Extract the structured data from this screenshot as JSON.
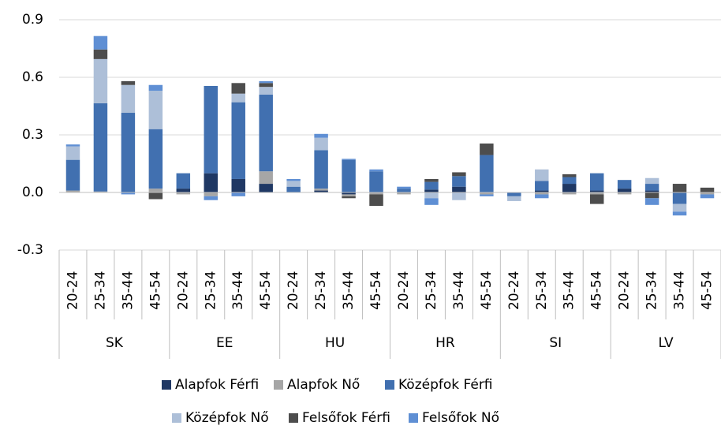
{
  "chart_data": {
    "type": "stacked_bar",
    "categories": [
      "20-24",
      "25-34",
      "35-44",
      "45-54",
      "20-24",
      "25-34",
      "35-44",
      "45-54",
      "20-24",
      "25-34",
      "35-44",
      "45-54",
      "20-24",
      "25-34",
      "35-44",
      "45-54",
      "20-24",
      "25-34",
      "35-44",
      "45-54",
      "20-24",
      "25-34",
      "35-44",
      "45-54"
    ],
    "groups": [
      "SK",
      "EE",
      "HU",
      "HR",
      "SI",
      "LV"
    ],
    "series": [
      {
        "name": "Alapfok Férfi",
        "color": "#1f3864",
        "values": [
          0,
          0,
          0,
          0,
          0.02,
          0.1,
          0.07,
          0.045,
          0,
          0.01,
          -0.01,
          0,
          0,
          0.015,
          0.03,
          0,
          0,
          0.01,
          0.045,
          0.01,
          0.02,
          0.01,
          0,
          0
        ]
      },
      {
        "name": "Alapfok Nő",
        "color": "#a6a6a6",
        "values": [
          0.01,
          0.005,
          0,
          0.02,
          -0.01,
          -0.02,
          0,
          0.065,
          0,
          0.01,
          -0.01,
          -0.01,
          -0.01,
          0,
          0,
          -0.01,
          0,
          -0.01,
          -0.01,
          -0.01,
          -0.01,
          0,
          0,
          -0.01
        ]
      },
      {
        "name": "Középfok Férfi",
        "color": "#4170b0",
        "values": [
          0.16,
          0.46,
          0.415,
          0.31,
          0.08,
          0.455,
          0.4,
          0.4,
          0.03,
          0.2,
          0.17,
          0.11,
          0.02,
          0.04,
          0.055,
          0.195,
          -0.02,
          0.05,
          0.035,
          0.09,
          0.045,
          0.035,
          -0.06,
          0
        ]
      },
      {
        "name": "Középfok Nő",
        "color": "#adbfd8",
        "values": [
          0.07,
          0.23,
          0.145,
          0.2,
          0,
          0,
          0.045,
          0.04,
          0.03,
          0.065,
          0,
          0,
          0,
          -0.03,
          -0.04,
          0,
          -0.025,
          0.06,
          0,
          0,
          0,
          0.03,
          -0.04,
          0
        ]
      },
      {
        "name": "Felsőfok Férfi",
        "color": "#4d4d4d",
        "values": [
          0,
          0.05,
          0.02,
          -0.035,
          0,
          0,
          0.055,
          0.02,
          0,
          0,
          -0.01,
          -0.06,
          0,
          0.015,
          0.02,
          0.06,
          0,
          0,
          0.015,
          -0.05,
          0,
          -0.03,
          0.045,
          0.025
        ]
      },
      {
        "name": "Felsőfok Nő",
        "color": "#5f8fd4",
        "values": [
          0.01,
          0.07,
          -0.01,
          0.03,
          0,
          -0.02,
          -0.02,
          0.01,
          0.01,
          0.02,
          0.005,
          0.01,
          0.01,
          -0.035,
          0,
          -0.01,
          0,
          -0.02,
          0,
          0,
          0,
          -0.035,
          -0.02,
          -0.02
        ]
      }
    ],
    "ylim": [
      -0.3,
      0.9
    ],
    "yticks": [
      {
        "value": -0.3,
        "label": "-0.3"
      },
      {
        "value": 0,
        "label": "0.0"
      },
      {
        "value": 0.3,
        "label": "0.3"
      },
      {
        "value": 0.6,
        "label": "0.6"
      },
      {
        "value": 0.9,
        "label": "0.9"
      }
    ],
    "grid": true
  }
}
